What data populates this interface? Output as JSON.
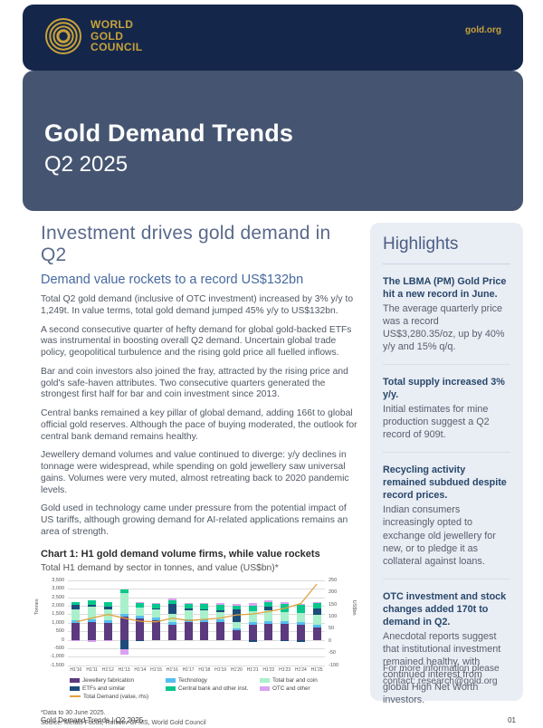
{
  "header": {
    "brand_lines": [
      "WORLD",
      "GOLD",
      "COUNCIL"
    ],
    "site": "gold.org"
  },
  "title_block": {
    "title": "Gold Demand Trends",
    "subtitle": "Q2 2025"
  },
  "main": {
    "heading": "Investment drives gold demand in Q2",
    "subheading": "Demand value rockets to a record US$132bn",
    "paragraphs": [
      "Total Q2 gold demand (inclusive of OTC investment) increased by 3% y/y to 1,249t. In value terms, total gold demand jumped 45% y/y to US$132bn.",
      "A second consecutive quarter of hefty demand for global gold-backed ETFs was instrumental in boosting overall Q2 demand. Uncertain global trade policy, geopolitical turbulence and the rising gold price all fuelled inflows.",
      "Bar and coin investors also joined the fray, attracted by the rising price and gold's safe-haven attributes. Two consecutive quarters generated the strongest first half for bar and coin investment since 2013.",
      "Central banks remained a key pillar of global demand, adding 166t to global official gold reserves. Although the pace of buying moderated, the outlook for central bank demand remains healthy.",
      "Jewellery demand volumes and value continued to diverge: y/y declines in tonnage were widespread, while spending on gold jewellery saw universal gains. Volumes were very muted, almost retreating back to 2020 pandemic levels.",
      "Gold used in technology came under pressure from the potential impact of US tariffs, although growing demand for AI-related applications remains an area of strength."
    ],
    "chart_heading": "Chart 1: H1 gold demand volume firms, while value rockets",
    "chart_subheading": "Total H1 demand by sector in tonnes, and value (US$bn)*",
    "footnotes": [
      "*Data to 30 June 2025.",
      "Source: Metals Focus, Refinitiv GFMS, World Gold Council"
    ]
  },
  "sidebar": {
    "title": "Highlights",
    "items": [
      {
        "heading": "The LBMA (PM) Gold Price hit a new record in June.",
        "body": "The average quarterly price was a record US$3,280.35/oz, up by 40% y/y and 15% q/q."
      },
      {
        "heading": "Total supply increased 3% y/y.",
        "body": "Initial estimates for mine production suggest a Q2 record of 909t."
      },
      {
        "heading": "Recycling activity remained subdued despite record prices.",
        "body": "Indian consumers increasingly opted to exchange old jewellery for new, or to pledge it as collateral against loans."
      },
      {
        "heading": "OTC investment and stock changes added 170t to demand in Q2.",
        "body": "Anecdotal reports suggest that institutional investment remained healthy, with continued interest from global High Net Worth investors."
      }
    ],
    "contact": "For more information please contact: research@gold.org"
  },
  "footer": {
    "left": "Gold Demand Trends | Q2 2025",
    "page": "01"
  },
  "colors": {
    "navy": "#14274A",
    "slate": "#455571",
    "gold": "#C8A13B",
    "sidebar_bg": "#E9EDF4",
    "accent_blue": "#47699E"
  },
  "chart_data": {
    "type": "bar",
    "stacked": true,
    "title": "Chart 1: H1 gold demand volume firms, while value rockets",
    "subtitle": "Total H1 demand by sector in tonnes, and value (US$bn)*",
    "categories": [
      "H1'10",
      "H1'11",
      "H1'12",
      "H1'13",
      "H1'14",
      "H1'15",
      "H1'16",
      "H1'17",
      "H1'18",
      "H1'19",
      "H1'20",
      "H1'21",
      "H1'22",
      "H1'23",
      "H1'24",
      "H1'25"
    ],
    "series": [
      {
        "name": "Jewellery fabrication",
        "color": "#5B3A7E",
        "values": [
          1000,
          1050,
          1000,
          1350,
          1250,
          1150,
          900,
          1050,
          1050,
          1050,
          550,
          900,
          950,
          950,
          900,
          700
        ]
      },
      {
        "name": "Technology",
        "color": "#56BEF0",
        "values": [
          160,
          160,
          150,
          160,
          160,
          150,
          160,
          160,
          170,
          160,
          140,
          160,
          160,
          140,
          160,
          160
        ]
      },
      {
        "name": "Total bar and coin",
        "color": "#A9F0CB",
        "values": [
          600,
          750,
          650,
          1250,
          500,
          500,
          450,
          500,
          500,
          400,
          350,
          600,
          600,
          550,
          500,
          600
        ]
      },
      {
        "name": "ETFs and similar",
        "color": "#1E4C7A",
        "values": [
          300,
          100,
          150,
          -580,
          -50,
          60,
          580,
          150,
          60,
          100,
          730,
          -130,
          230,
          -60,
          -120,
          400
        ]
      },
      {
        "name": "Central bank and other inst.",
        "color": "#07C78D",
        "values": [
          150,
          250,
          250,
          200,
          250,
          250,
          250,
          250,
          300,
          350,
          230,
          350,
          280,
          450,
          480,
          290
        ]
      },
      {
        "name": "OTC and other",
        "color": "#D9A2F0",
        "values": [
          -80,
          -150,
          -60,
          -300,
          60,
          60,
          80,
          60,
          60,
          100,
          100,
          150,
          80,
          120,
          60,
          80
        ]
      }
    ],
    "line_series": {
      "name": "Total Demand (value, rhs)",
      "color": "#E0A23E",
      "axis": "right",
      "values": [
        80,
        95,
        110,
        95,
        82,
        80,
        95,
        85,
        90,
        95,
        108,
        112,
        122,
        135,
        155,
        235
      ]
    },
    "left_axis": {
      "label": "Tonnes",
      "min": -1500,
      "max": 3500,
      "step": 500
    },
    "right_axis": {
      "label": "US$bn",
      "min": -100,
      "max": 250,
      "step": 50
    },
    "grid": true,
    "legend_position": "bottom"
  }
}
